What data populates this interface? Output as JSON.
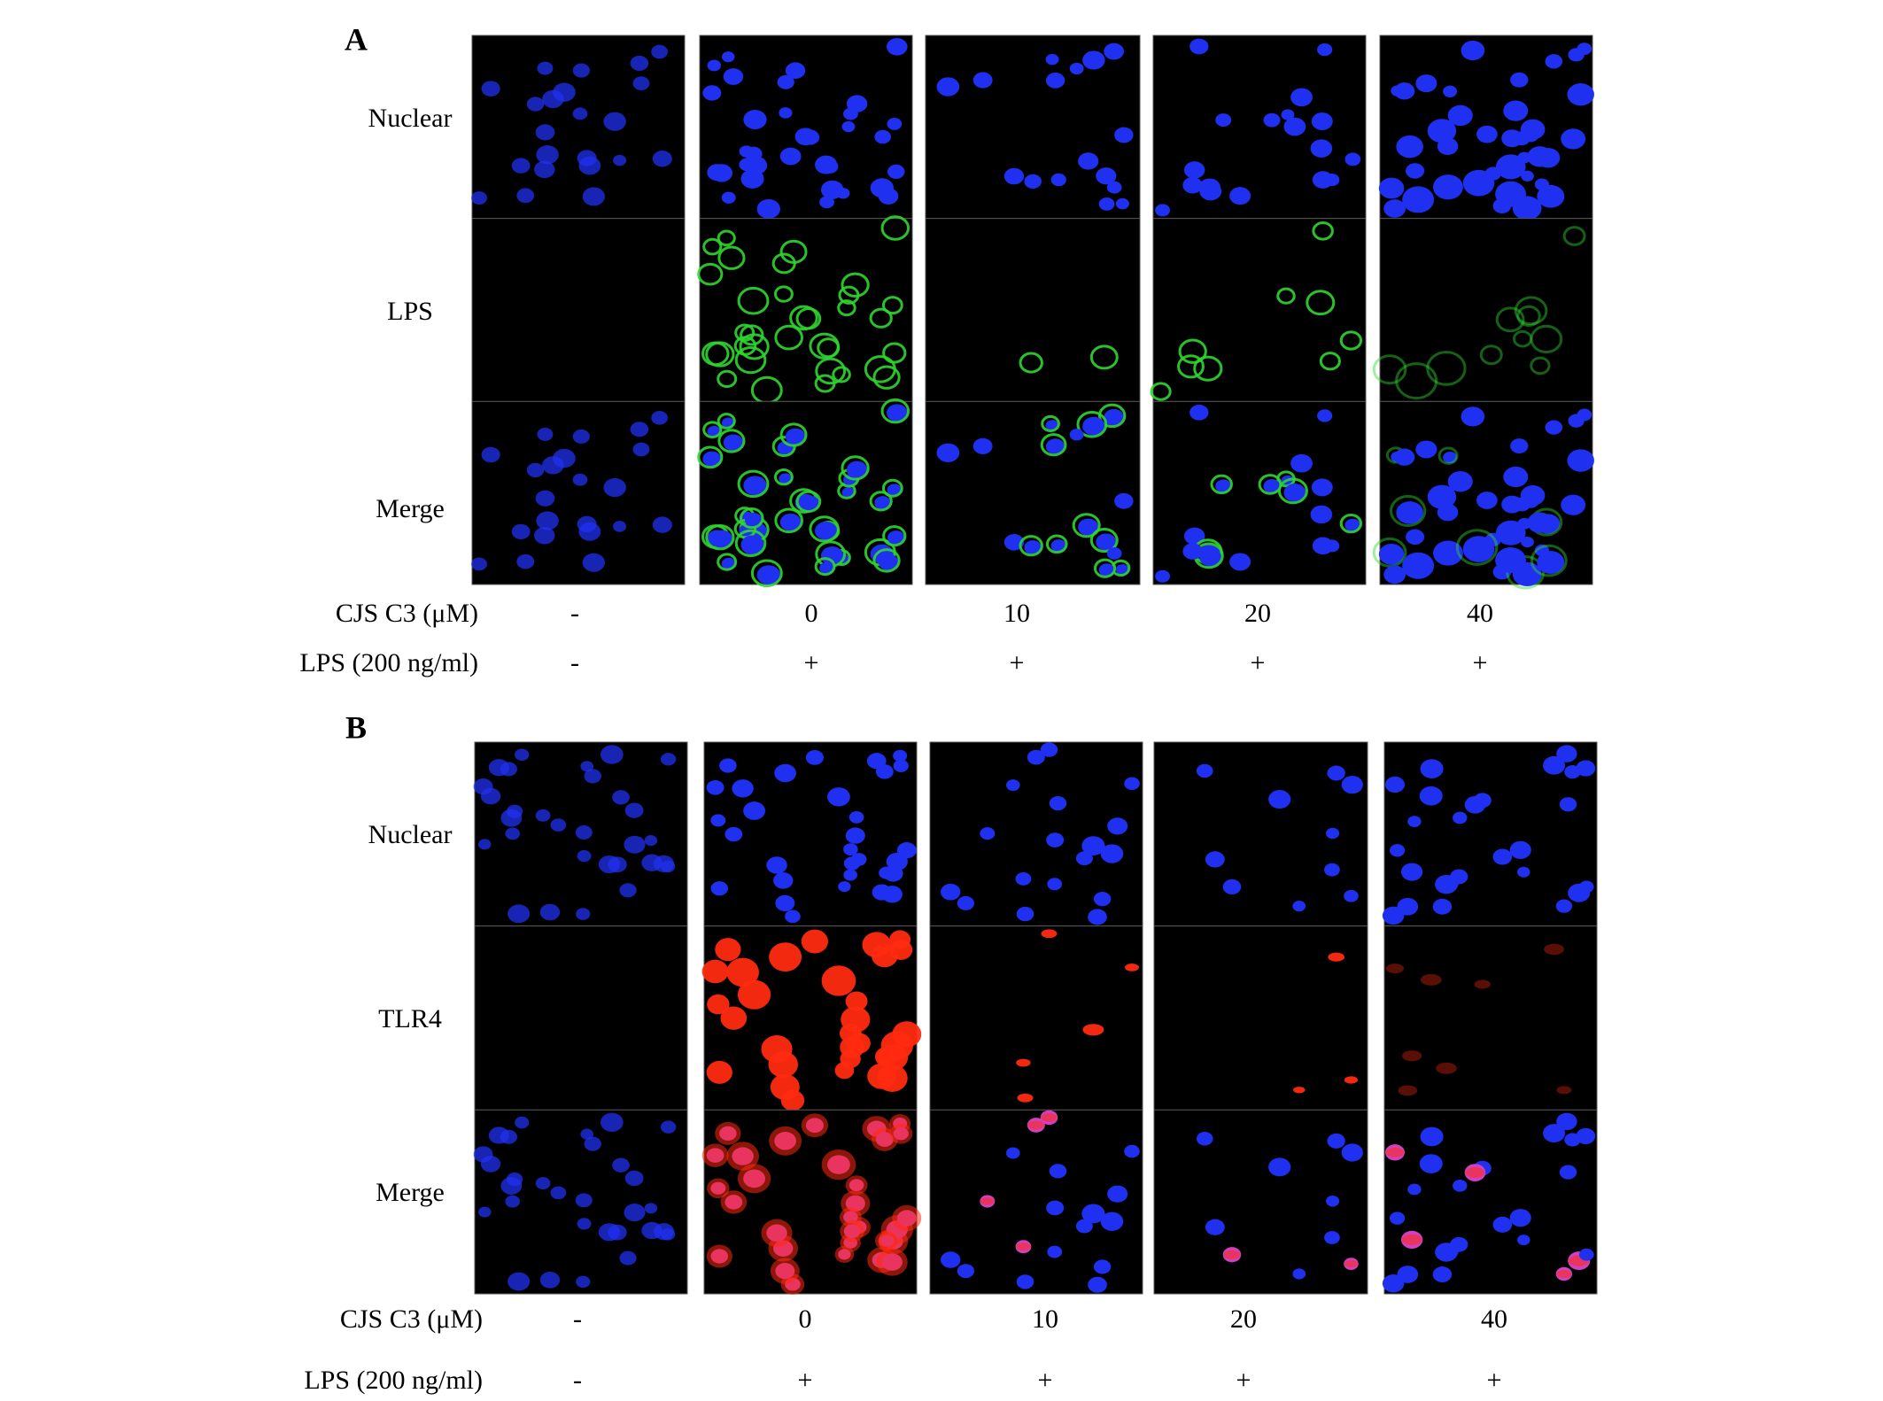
{
  "panels": [
    {
      "label": "A",
      "rows": [
        "Nuclear",
        "LPS",
        "Merge"
      ],
      "conditions": [
        {
          "label": "CJS C3 (μM)",
          "values": [
            "-",
            "0",
            "10",
            "20",
            "40"
          ]
        },
        {
          "label": "LPS (200 ng/ml)",
          "values": [
            "-",
            "+",
            "+",
            "+",
            "+"
          ]
        }
      ]
    },
    {
      "label": "B",
      "rows": [
        "Nuclear",
        "TLR4",
        "Merge"
      ],
      "conditions": [
        {
          "label": "CJS C3 (μM)",
          "values": [
            "-",
            "0",
            "10",
            "20",
            "40"
          ]
        },
        {
          "label": "LPS (200 ng/ml)",
          "values": [
            "-",
            "+",
            "+",
            "+",
            "+"
          ]
        }
      ]
    }
  ]
}
